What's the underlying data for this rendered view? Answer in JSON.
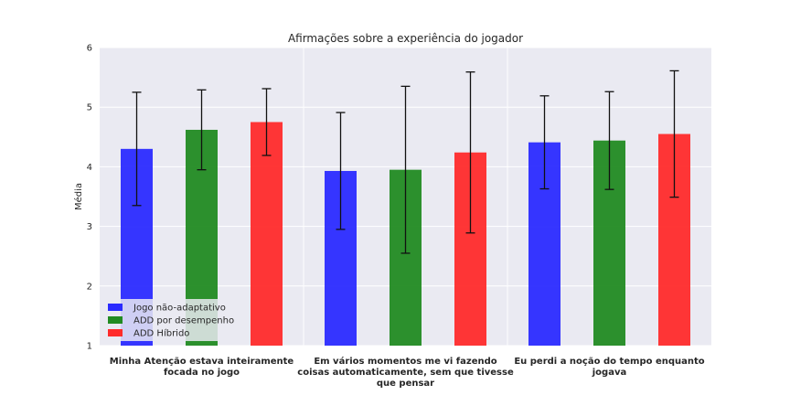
{
  "chart_data": {
    "type": "bar",
    "title": "Afirmações sobre a experiência do jogador",
    "xlabel": "",
    "ylabel": "Média",
    "ylim": [
      1,
      6
    ],
    "yticks": [
      "1",
      "2",
      "3",
      "4",
      "5",
      "6"
    ],
    "grid": true,
    "legend_position": "lower-left",
    "categories": [
      [
        "Minha Atenção estava inteiramente",
        "focada no jogo"
      ],
      [
        "Em vários momentos me vi fazendo",
        "coisas automaticamente, sem que tivesse",
        "que pensar"
      ],
      [
        "Eu perdi a noção do tempo enquanto",
        "jogava"
      ]
    ],
    "series": [
      {
        "name": "Jogo não-adaptativo",
        "color": "#2b2bff",
        "values": [
          4.3,
          3.93,
          4.41
        ],
        "errors": [
          0.95,
          0.98,
          0.78
        ]
      },
      {
        "name": "ADD por desempenho",
        "color": "#228b22",
        "values": [
          4.62,
          3.95,
          4.44
        ],
        "errors": [
          0.67,
          1.4,
          0.82
        ]
      },
      {
        "name": "ADD Híbrido",
        "color": "#ff2b2b",
        "values": [
          4.75,
          4.24,
          4.55
        ],
        "errors": [
          0.56,
          1.35,
          1.06
        ]
      }
    ]
  }
}
